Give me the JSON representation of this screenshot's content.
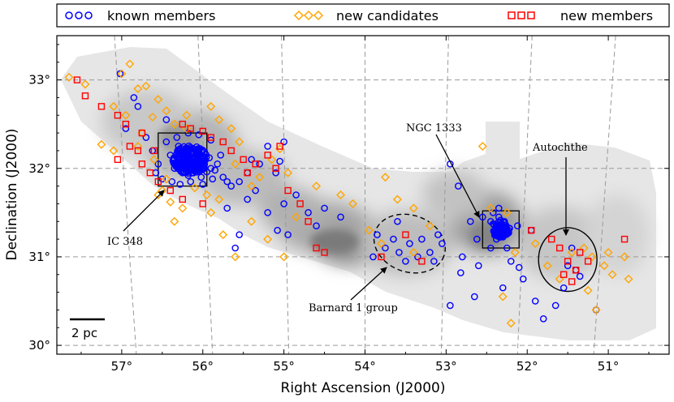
{
  "chart_data": {
    "type": "scatter",
    "xlabel": "Right Ascension (J2000)",
    "ylabel": "Declination (J2000)",
    "xlim": [
      57.8,
      50.25
    ],
    "ylim": [
      29.9,
      33.5
    ],
    "x_ticks": [
      57,
      56,
      55,
      54,
      53,
      52,
      51
    ],
    "x_tick_labels": [
      "57°",
      "56°",
      "55°",
      "54°",
      "53°",
      "52°",
      "51°"
    ],
    "y_ticks": [
      30,
      31,
      32,
      33
    ],
    "y_tick_labels": [
      "30°",
      "31°",
      "32°",
      "33°"
    ],
    "grid": true,
    "legend": {
      "placement": "top",
      "entries": [
        "known members",
        "new candidates",
        "new members"
      ]
    },
    "series": [
      {
        "name": "known members",
        "marker": "circle",
        "color": "#0000ff",
        "points": [
          [
            57.02,
            33.07
          ],
          [
            56.85,
            32.8
          ],
          [
            56.8,
            32.7
          ],
          [
            56.95,
            32.45
          ],
          [
            56.45,
            32.55
          ],
          [
            56.7,
            32.35
          ],
          [
            56.62,
            32.2
          ],
          [
            56.55,
            32.05
          ],
          [
            56.58,
            31.95
          ],
          [
            56.5,
            31.88
          ],
          [
            56.45,
            32.3
          ],
          [
            56.4,
            32.15
          ],
          [
            56.35,
            32.0
          ],
          [
            56.3,
            32.25
          ],
          [
            56.28,
            32.1
          ],
          [
            56.25,
            31.95
          ],
          [
            56.22,
            32.18
          ],
          [
            56.2,
            32.05
          ],
          [
            56.18,
            31.92
          ],
          [
            56.15,
            32.22
          ],
          [
            56.12,
            32.08
          ],
          [
            56.1,
            31.98
          ],
          [
            56.08,
            32.15
          ],
          [
            56.05,
            32.02
          ],
          [
            56.02,
            31.9
          ],
          [
            56.0,
            32.2
          ],
          [
            55.98,
            32.08
          ],
          [
            55.95,
            31.96
          ],
          [
            55.92,
            32.12
          ],
          [
            55.9,
            32.0
          ],
          [
            56.32,
            32.35
          ],
          [
            56.18,
            32.4
          ],
          [
            56.05,
            32.38
          ],
          [
            55.9,
            32.32
          ],
          [
            55.85,
            31.98
          ],
          [
            56.38,
            31.85
          ],
          [
            56.28,
            31.82
          ],
          [
            56.15,
            31.85
          ],
          [
            56.0,
            31.82
          ],
          [
            55.88,
            31.88
          ],
          [
            55.82,
            32.05
          ],
          [
            55.78,
            32.15
          ],
          [
            55.75,
            31.9
          ],
          [
            55.7,
            31.85
          ],
          [
            55.65,
            31.8
          ],
          [
            55.55,
            31.85
          ],
          [
            55.45,
            31.95
          ],
          [
            55.4,
            32.1
          ],
          [
            55.3,
            32.05
          ],
          [
            55.2,
            32.25
          ],
          [
            55.1,
            31.95
          ],
          [
            55.05,
            32.08
          ],
          [
            55.2,
            31.5
          ],
          [
            55.08,
            31.3
          ],
          [
            54.85,
            31.7
          ],
          [
            54.7,
            31.5
          ],
          [
            54.6,
            31.35
          ],
          [
            54.5,
            31.55
          ],
          [
            54.3,
            31.45
          ],
          [
            55.6,
            31.1
          ],
          [
            55.55,
            31.25
          ],
          [
            55.0,
            31.6
          ],
          [
            54.95,
            31.25
          ],
          [
            53.85,
            31.25
          ],
          [
            53.75,
            31.1
          ],
          [
            53.65,
            31.2
          ],
          [
            53.58,
            31.05
          ],
          [
            53.5,
            30.95
          ],
          [
            53.45,
            31.15
          ],
          [
            53.35,
            31.0
          ],
          [
            53.3,
            31.2
          ],
          [
            53.2,
            31.05
          ],
          [
            53.6,
            31.4
          ],
          [
            53.1,
            31.25
          ],
          [
            53.05,
            31.15
          ],
          [
            53.15,
            30.95
          ],
          [
            52.95,
            32.05
          ],
          [
            52.85,
            31.8
          ],
          [
            52.82,
            30.82
          ],
          [
            52.8,
            31.0
          ],
          [
            52.7,
            31.4
          ],
          [
            52.65,
            30.55
          ],
          [
            52.55,
            31.45
          ],
          [
            52.45,
            31.4
          ],
          [
            52.4,
            31.3
          ],
          [
            52.35,
            31.45
          ],
          [
            52.32,
            31.35
          ],
          [
            52.3,
            31.25
          ],
          [
            52.28,
            31.4
          ],
          [
            52.38,
            31.2
          ],
          [
            52.25,
            31.3
          ],
          [
            52.42,
            31.5
          ],
          [
            52.35,
            31.55
          ],
          [
            52.45,
            31.1
          ],
          [
            52.25,
            31.1
          ],
          [
            52.2,
            30.95
          ],
          [
            52.1,
            30.88
          ],
          [
            52.05,
            30.75
          ],
          [
            52.3,
            30.65
          ],
          [
            52.6,
            30.9
          ],
          [
            51.9,
            30.5
          ],
          [
            51.8,
            30.3
          ],
          [
            51.65,
            30.45
          ],
          [
            51.55,
            30.65
          ],
          [
            51.5,
            30.9
          ],
          [
            51.4,
            30.85
          ],
          [
            51.35,
            30.78
          ],
          [
            51.45,
            31.1
          ],
          [
            51.95,
            31.3
          ],
          [
            55.7,
            31.55
          ],
          [
            55.45,
            31.65
          ],
          [
            55.0,
            32.3
          ],
          [
            55.35,
            31.75
          ],
          [
            52.95,
            30.45
          ],
          [
            51.15,
            30.4
          ],
          [
            52.62,
            31.2
          ],
          [
            53.9,
            31.0
          ],
          [
            52.12,
            31.35
          ]
        ]
      },
      {
        "name": "new candidates",
        "marker": "diamond",
        "color": "#ffa500",
        "points": [
          [
            57.65,
            33.03
          ],
          [
            57.0,
            33.07
          ],
          [
            56.9,
            33.18
          ],
          [
            56.8,
            32.9
          ],
          [
            56.7,
            32.93
          ],
          [
            56.55,
            32.78
          ],
          [
            57.1,
            32.7
          ],
          [
            56.95,
            32.6
          ],
          [
            56.75,
            32.4
          ],
          [
            56.62,
            32.58
          ],
          [
            56.45,
            32.65
          ],
          [
            57.25,
            32.27
          ],
          [
            57.1,
            32.2
          ],
          [
            56.8,
            32.25
          ],
          [
            56.6,
            32.1
          ],
          [
            56.45,
            31.88
          ],
          [
            56.55,
            31.7
          ],
          [
            56.4,
            31.62
          ],
          [
            56.35,
            32.5
          ],
          [
            56.2,
            32.6
          ],
          [
            55.9,
            32.7
          ],
          [
            55.8,
            32.55
          ],
          [
            55.65,
            32.45
          ],
          [
            55.55,
            32.3
          ],
          [
            55.6,
            32.05
          ],
          [
            55.4,
            31.8
          ],
          [
            55.3,
            31.9
          ],
          [
            55.15,
            32.1
          ],
          [
            55.05,
            32.22
          ],
          [
            54.95,
            31.95
          ],
          [
            55.8,
            31.65
          ],
          [
            55.9,
            31.5
          ],
          [
            55.75,
            31.25
          ],
          [
            55.6,
            31.0
          ],
          [
            55.4,
            31.4
          ],
          [
            55.2,
            31.2
          ],
          [
            55.0,
            31.0
          ],
          [
            54.85,
            31.45
          ],
          [
            54.6,
            31.8
          ],
          [
            54.3,
            31.7
          ],
          [
            54.15,
            31.6
          ],
          [
            53.75,
            31.9
          ],
          [
            53.6,
            31.65
          ],
          [
            53.4,
            31.55
          ],
          [
            53.95,
            31.3
          ],
          [
            53.8,
            31.15
          ],
          [
            53.4,
            31.05
          ],
          [
            53.2,
            31.35
          ],
          [
            52.55,
            32.25
          ],
          [
            52.45,
            31.55
          ],
          [
            52.35,
            31.3
          ],
          [
            52.25,
            31.5
          ],
          [
            52.15,
            31.05
          ],
          [
            51.9,
            31.15
          ],
          [
            51.75,
            30.9
          ],
          [
            51.6,
            30.75
          ],
          [
            51.45,
            31.05
          ],
          [
            51.3,
            31.1
          ],
          [
            51.2,
            31.0
          ],
          [
            51.05,
            30.9
          ],
          [
            50.75,
            30.75
          ],
          [
            50.95,
            30.8
          ],
          [
            51.0,
            31.05
          ],
          [
            51.25,
            30.62
          ],
          [
            52.2,
            30.25
          ],
          [
            52.3,
            30.55
          ],
          [
            51.15,
            30.4
          ],
          [
            50.8,
            31.0
          ],
          [
            57.45,
            32.95
          ],
          [
            56.2,
            32.45
          ],
          [
            55.95,
            31.7
          ],
          [
            56.1,
            31.78
          ],
          [
            56.5,
            31.75
          ],
          [
            56.35,
            31.4
          ],
          [
            56.25,
            31.55
          ]
        ]
      },
      {
        "name": "new members",
        "marker": "square",
        "color": "#ff0000",
        "points": [
          [
            57.55,
            33.0
          ],
          [
            57.45,
            32.82
          ],
          [
            57.25,
            32.7
          ],
          [
            57.05,
            32.6
          ],
          [
            56.95,
            32.5
          ],
          [
            56.8,
            32.2
          ],
          [
            56.75,
            32.05
          ],
          [
            56.65,
            31.95
          ],
          [
            56.55,
            31.85
          ],
          [
            56.4,
            31.75
          ],
          [
            57.05,
            32.1
          ],
          [
            56.9,
            32.25
          ],
          [
            56.25,
            32.5
          ],
          [
            56.15,
            32.45
          ],
          [
            56.0,
            32.42
          ],
          [
            55.9,
            32.35
          ],
          [
            55.75,
            32.3
          ],
          [
            55.65,
            32.2
          ],
          [
            55.5,
            32.1
          ],
          [
            55.45,
            31.95
          ],
          [
            55.35,
            32.05
          ],
          [
            55.2,
            32.15
          ],
          [
            55.1,
            32.0
          ],
          [
            55.05,
            32.25
          ],
          [
            54.95,
            31.75
          ],
          [
            54.8,
            31.6
          ],
          [
            54.7,
            31.4
          ],
          [
            56.25,
            31.65
          ],
          [
            56.0,
            31.6
          ],
          [
            54.6,
            31.1
          ],
          [
            54.5,
            31.05
          ],
          [
            53.8,
            31.0
          ],
          [
            53.5,
            31.25
          ],
          [
            53.3,
            30.95
          ],
          [
            51.7,
            31.2
          ],
          [
            51.6,
            31.1
          ],
          [
            51.5,
            30.95
          ],
          [
            51.4,
            30.85
          ],
          [
            51.55,
            30.8
          ],
          [
            51.45,
            30.72
          ],
          [
            51.35,
            31.05
          ],
          [
            51.25,
            30.95
          ],
          [
            50.8,
            31.2
          ],
          [
            51.95,
            31.3
          ],
          [
            56.75,
            32.4
          ],
          [
            56.6,
            32.2
          ]
        ]
      }
    ],
    "boxes": [
      {
        "ra": [
          56.55,
          55.95
        ],
        "dec": [
          31.8,
          32.4
        ]
      },
      {
        "ra": [
          52.55,
          52.1
        ],
        "dec": [
          31.1,
          31.52
        ]
      }
    ],
    "regions": [
      {
        "label": "Barnard 1 group",
        "center": [
          53.45,
          31.15
        ],
        "rx": 0.45,
        "ry": 0.32,
        "style": "dashed",
        "rotation_deg": 20
      },
      {
        "label": "Autochthe",
        "center": [
          51.5,
          30.97
        ],
        "rx": 0.36,
        "ry": 0.36,
        "style": "solid",
        "rotation_deg": 0
      }
    ],
    "annotations": [
      {
        "text": "IC 348",
        "target": [
          56.55,
          31.8
        ]
      },
      {
        "text": "NGC 1333",
        "target": [
          52.5,
          31.5
        ]
      },
      {
        "text": "Autochthe",
        "target": [
          51.5,
          31.35
        ]
      },
      {
        "text": "Barnard 1 group",
        "target": [
          53.65,
          30.95
        ]
      }
    ],
    "scale_bar": {
      "label": "2 pc"
    }
  }
}
